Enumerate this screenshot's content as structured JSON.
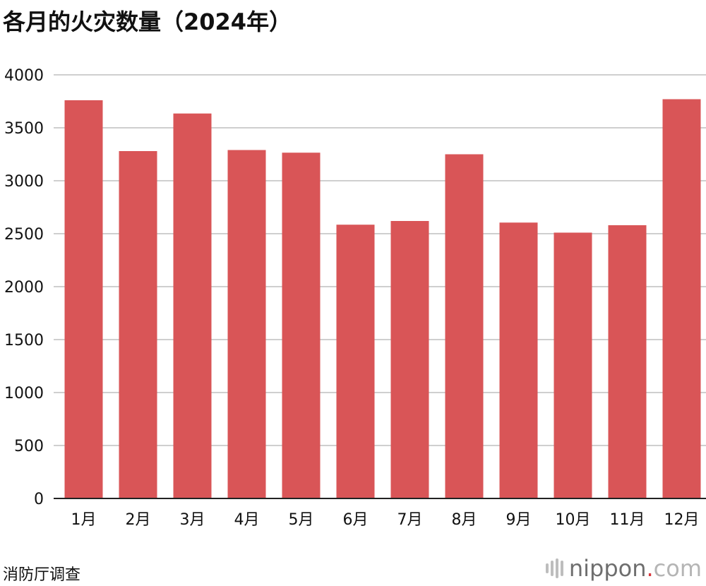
{
  "title": "各月的火灾数量（2024年）",
  "source": "消防厅调查",
  "logo": {
    "brand": "nippon",
    "dot": ".",
    "tld": "com"
  },
  "colors": {
    "bar": "#d95557",
    "grid": "#cfcfcf",
    "axis": "#222222"
  },
  "chart_data": {
    "type": "bar",
    "title": "各月的火灾数量（2024年）",
    "xlabel": "",
    "ylabel": "",
    "categories": [
      "1月",
      "2月",
      "3月",
      "4月",
      "5月",
      "6月",
      "7月",
      "8月",
      "9月",
      "10月",
      "11月",
      "12月"
    ],
    "values": [
      3760,
      3280,
      3635,
      3290,
      3265,
      2585,
      2620,
      3250,
      2605,
      2510,
      2580,
      3770
    ],
    "ylim": [
      0,
      4000
    ],
    "yticks": [
      0,
      500,
      1000,
      1500,
      2000,
      2500,
      3000,
      3500,
      4000
    ],
    "grid": true,
    "legend": "none"
  }
}
